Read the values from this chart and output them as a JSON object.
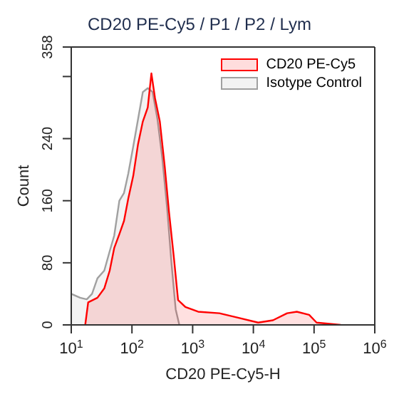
{
  "chart_data": {
    "type": "area",
    "title": "CD20 PE-Cy5 / P1 / P2 / Lym",
    "xlabel": "CD20 PE-Cy5-H",
    "ylabel": "Count",
    "log": "x",
    "xlim": [
      10,
      1000000
    ],
    "xticks": [
      {
        "value": 10,
        "label": "10$^{1}$"
      },
      {
        "value": 100,
        "label": "10$^{2}$"
      },
      {
        "value": 1000,
        "label": "10$^{3}$"
      },
      {
        "value": 10000,
        "label": "10$^{4}$"
      },
      {
        "value": 100000,
        "label": "10$^{5}$"
      },
      {
        "value": 1000000,
        "label": "10$^{6}$"
      }
    ],
    "ylim": [
      0,
      358
    ],
    "yticks": [
      0,
      80,
      160,
      240,
      {
        "value": 320,
        "label": null
      },
      358
    ],
    "legend": "top right",
    "series": [
      {
        "name": "Isotype Control",
        "color": "#a0a0a0",
        "x": [
          10,
          14,
          18,
          22,
          27,
          35,
          43,
          51,
          62,
          74,
          87,
          105,
          126,
          151,
          182,
          219,
          263,
          316,
          380,
          447,
          525,
          603
        ],
        "values": [
          40,
          35,
          33,
          40,
          60,
          70,
          95,
          115,
          160,
          170,
          195,
          230,
          265,
          300,
          305,
          300,
          265,
          215,
          150,
          80,
          20,
          0
        ]
      },
      {
        "name": "CD20 PE-Cy5",
        "color": "#ff0000",
        "x": [
          17,
          19,
          27,
          35,
          43,
          51,
          62,
          74,
          87,
          105,
          126,
          151,
          182,
          209,
          240,
          288,
          347,
          407,
          490,
          575,
          760,
          1230,
          2750,
          5750,
          12000,
          21000,
          36000,
          52000,
          83000,
          110000,
          275000
        ],
        "values": [
          0,
          29,
          35,
          47,
          70,
          99,
          117,
          134,
          163,
          192,
          233,
          262,
          280,
          324,
          292,
          262,
          204,
          146,
          87,
          32,
          23,
          17,
          15,
          9,
          3,
          6,
          15,
          17,
          13,
          3,
          0
        ]
      }
    ]
  }
}
